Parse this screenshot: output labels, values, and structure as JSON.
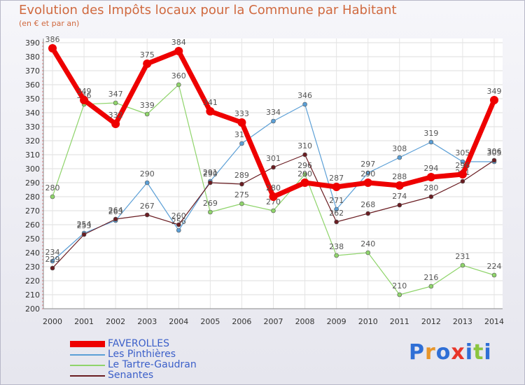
{
  "header": {
    "title": "Evolution des Impôts locaux pour la Commune par Habitant",
    "subtitle": "(en € et par an)"
  },
  "logo": {
    "text": "Proxiti",
    "colors": [
      "#2f6fd6",
      "#e8962a",
      "#2f6fd6",
      "#e8362a",
      "#2f6fd6",
      "#8bc53f",
      "#2f6fd6"
    ]
  },
  "chart_data": {
    "type": "line",
    "x": [
      "2000",
      "2001",
      "2002",
      "2003",
      "2004",
      "2005",
      "2006",
      "2007",
      "2008",
      "2009",
      "2010",
      "2011",
      "2012",
      "2013",
      "2014"
    ],
    "ylim": [
      200,
      390
    ],
    "yticks": [
      200,
      210,
      220,
      230,
      240,
      250,
      260,
      270,
      280,
      290,
      300,
      310,
      320,
      330,
      340,
      350,
      360,
      370,
      380,
      390
    ],
    "grid": true,
    "legend_position": "bottom-left",
    "series": [
      {
        "name": "Le Tartre-Gaudran",
        "color": "#8fd46b",
        "width": 1.2,
        "values": [
          280,
          346,
          347,
          339,
          360,
          269,
          275,
          270,
          296,
          238,
          240,
          210,
          216,
          231,
          224
        ]
      },
      {
        "name": "Les Pinthières",
        "color": "#5b9fd6",
        "width": 1.2,
        "values": [
          234,
          254,
          263,
          290,
          256,
          291,
          318,
          334,
          346,
          271,
          297,
          308,
          319,
          305,
          305
        ]
      },
      {
        "name": "Senantes",
        "color": "#6a1d22",
        "width": 1.2,
        "values": [
          229,
          253,
          264,
          267,
          260,
          290,
          289,
          301,
          310,
          262,
          268,
          274,
          280,
          291,
          306
        ]
      },
      {
        "name": "FAVEROLLES",
        "color": "#ee0000",
        "width": 7,
        "values": [
          386,
          349,
          332,
          375,
          384,
          341,
          333,
          280,
          290,
          287,
          290,
          288,
          294,
          296,
          349
        ]
      }
    ]
  },
  "legend": {
    "items": [
      {
        "label": "FAVEROLLES",
        "color": "#ee0000"
      },
      {
        "label": "Les Pinthières",
        "color": "#5b9fd6"
      },
      {
        "label": "Le Tartre-Gaudran",
        "color": "#8fd46b"
      },
      {
        "label": "Senantes",
        "color": "#6a1d22"
      }
    ]
  }
}
